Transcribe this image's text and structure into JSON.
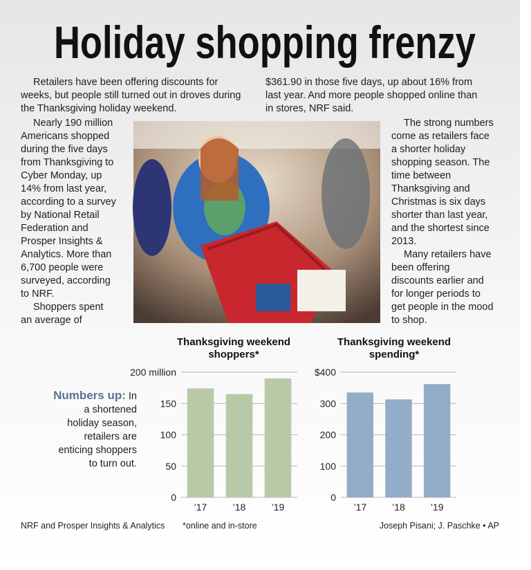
{
  "headline": "Holiday shopping frenzy",
  "article": [
    {
      "lines": [
        "Retailers have been offering discounts for",
        "weeks, but people still turned out in droves during",
        "the Thanksgiving holiday weekend."
      ]
    },
    {
      "lines": [
        "Nearly 190 million",
        "Americans shopped",
        "during the five days",
        "from Thanksgiving to",
        "Cyber Monday, up",
        "14% from last year,",
        "according to a survey",
        "by National Retail",
        "Federation and",
        "Prosper Insights &",
        "Analytics. More than",
        "6,700 people were",
        "surveyed, according",
        "to NRF.",
        "Shoppers spent",
        "an average of"
      ]
    },
    {
      "lines": [
        "$361.90 in those five days, up about 16% from",
        "last year. And more people shopped online than",
        "in stores, NRF said."
      ]
    },
    {
      "lines": [
        "The strong numbers",
        "come as retailers face",
        "a shorter holiday",
        "shopping season. The",
        "time between",
        "Thanksgiving and",
        "Christmas is six days",
        "shorter than last year,",
        "and the shortest since",
        "2013.",
        "Many retailers have",
        "been offering",
        "discounts earlier and",
        "for longer periods to",
        "get people in the mood",
        "to shop."
      ]
    }
  ],
  "sidebar": {
    "label": "Numbers up:",
    "lines": [
      "In",
      "a shortened",
      "holiday season,",
      "retailers are",
      "enticing shoppers",
      "to turn out."
    ]
  },
  "chart_data": [
    {
      "type": "bar",
      "title": [
        "Thanksgiving weekend",
        "shoppers*"
      ],
      "categories": [
        "’17",
        "’18",
        "’19"
      ],
      "values": [
        174,
        165,
        190
      ],
      "color": "#b9c9a8",
      "ylim": [
        0,
        200
      ],
      "yticks": [
        0,
        50,
        100,
        150,
        {
          "value": 200,
          "label": "200 million"
        }
      ],
      "grid": true
    },
    {
      "type": "bar",
      "title": [
        "Thanksgiving weekend",
        "spending*"
      ],
      "categories": [
        "’17",
        "’18",
        "’19"
      ],
      "values": [
        335,
        313,
        361.9
      ],
      "color": "#93acc8",
      "ylim": [
        0,
        400
      ],
      "yticks": [
        0,
        100,
        200,
        300,
        {
          "value": 400,
          "label": "$400"
        }
      ],
      "grid": true
    }
  ],
  "footer": {
    "source": "NRF and Prosper Insights & Analytics",
    "note": "*online and in-store",
    "credit": "Joseph Pisani; J. Paschke • AP"
  }
}
